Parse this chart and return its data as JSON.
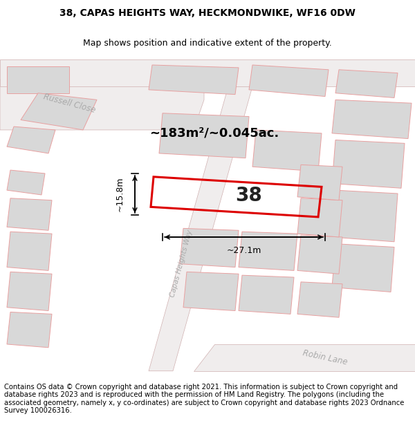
{
  "title_line1": "38, CAPAS HEIGHTS WAY, HECKMONDWIKE, WF16 0DW",
  "title_line2": "Map shows position and indicative extent of the property.",
  "footer_text": "Contains OS data © Crown copyright and database right 2021. This information is subject to Crown copyright and database rights 2023 and is reproduced with the permission of HM Land Registry. The polygons (including the associated geometry, namely x, y co-ordinates) are subject to Crown copyright and database rights 2023 Ordnance Survey 100026316.",
  "map_bg": "#ffffff",
  "building_color": "#d8d8d8",
  "building_edge": "#e8a0a0",
  "highlight_color": "#dd0000",
  "label_38": "38",
  "area_label": "~183m²/~0.045ac.",
  "dim_width": "~27.1m",
  "dim_height": "~15.8m",
  "road_label1": "Capas Heights Way",
  "road_label2": "Robin Lane",
  "road_label3": "Russell Close",
  "title_fontsize": 10,
  "subtitle_fontsize": 9,
  "footer_fontsize": 7.2
}
